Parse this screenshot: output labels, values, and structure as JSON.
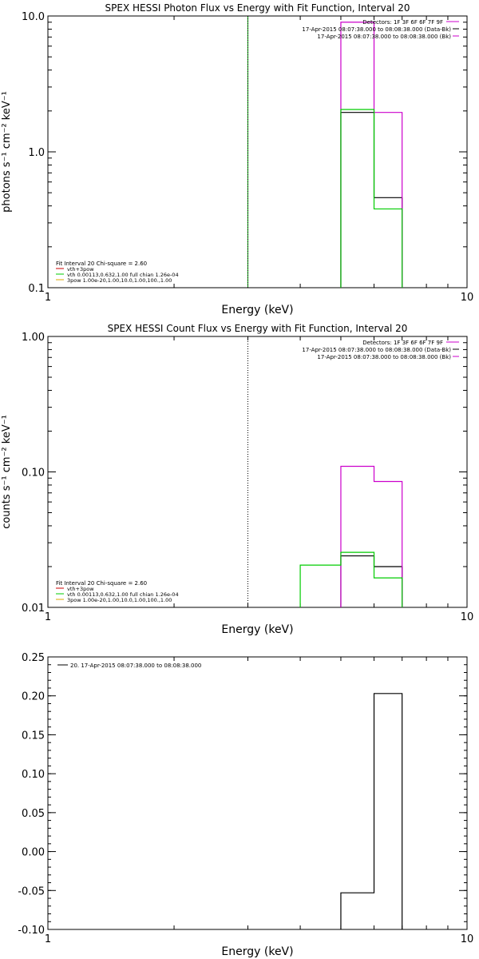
{
  "chart_data": [
    {
      "type": "line",
      "title": "SPEX HESSI Photon Flux vs Energy with Fit Function, Interval 20",
      "xlabel": "Energy (keV)",
      "ylabel": "photons s⁻¹ cm⁻² keV⁻¹",
      "xscale": "log",
      "yscale": "log",
      "xlim": [
        1,
        10
      ],
      "ylim": [
        0.1,
        10
      ],
      "xticks": [
        {
          "v": 1,
          "label": "1"
        },
        {
          "v": 10,
          "label": "10"
        }
      ],
      "yticks": [
        {
          "v": 0.1,
          "label": "0.1"
        },
        {
          "v": 1,
          "label": "1.0"
        },
        {
          "v": 10,
          "label": "10.0"
        }
      ],
      "vlines": [
        {
          "x": 3.0,
          "color": "#00a000",
          "style": "solid"
        },
        {
          "x": 3.0,
          "color": "#000000",
          "style": "dotted"
        }
      ],
      "series": [
        {
          "name": "17-Apr-2015 08:07:38.000 to 08:08:38.000 (Data-Bk)",
          "color": "#000000",
          "edges": [
            5.0,
            6.0,
            7.0
          ],
          "values": [
            1.95,
            0.46
          ]
        },
        {
          "name": "17-Apr-2015 08:07:38.000 to 08:08:38.000 (Bk)",
          "color": "#cc00cc",
          "edges": [
            5.0,
            6.0,
            7.0
          ],
          "values": [
            9.0,
            1.95
          ]
        },
        {
          "name": "vth 0.00113,0.632,1.00  full chian 1.26e-04",
          "color": "#00cc00",
          "edges": [
            5.0,
            6.0,
            7.0
          ],
          "values": [
            2.05,
            0.38
          ]
        }
      ],
      "legend_right": {
        "header": "Detectors: 1F 3F 6F 6F 7F 9F",
        "items": [
          {
            "text": "17-Apr-2015 08:07:38.000 to 08:08:38.000 (Data-Bk)",
            "color": "#000000"
          },
          {
            "text": "17-Apr-2015 08:07:38.000 to 08:08:38.000 (Bk)",
            "color": "#cc00cc"
          }
        ]
      },
      "legend_left": {
        "header": "Fit Interval 20   Chi-square = 2.60",
        "items": [
          {
            "text": "vth+3pow",
            "color": "#cc0000"
          },
          {
            "text": "vth 0.00113,0.632,1.00  full chian 1.26e-04",
            "color": "#00cc00"
          },
          {
            "text": "3pow 1.00e-20,1.00,10.0,1.00,100.,1.00",
            "color": "#ddaa00"
          }
        ]
      }
    },
    {
      "type": "line",
      "title": "SPEX HESSI Count Flux vs Energy with Fit Function, Interval 20",
      "xlabel": "Energy (keV)",
      "ylabel": "counts s⁻¹ cm⁻² keV⁻¹",
      "xscale": "log",
      "yscale": "log",
      "xlim": [
        1,
        10
      ],
      "ylim": [
        0.01,
        1.0
      ],
      "xticks": [
        {
          "v": 1,
          "label": "1"
        },
        {
          "v": 10,
          "label": "10"
        }
      ],
      "yticks": [
        {
          "v": 0.01,
          "label": "0.01"
        },
        {
          "v": 0.1,
          "label": "0.10"
        },
        {
          "v": 1,
          "label": "1.00"
        }
      ],
      "vlines": [
        {
          "x": 3.0,
          "color": "#000000",
          "style": "dotted"
        }
      ],
      "series": [
        {
          "name": "17-Apr-2015 08:07:38.000 to 08:08:38.000 (Data-Bk)",
          "color": "#000000",
          "edges": [
            5.0,
            6.0,
            7.0
          ],
          "values": [
            0.024,
            0.02
          ]
        },
        {
          "name": "17-Apr-2015 08:07:38.000 to 08:08:38.000 (Bk)",
          "color": "#cc00cc",
          "edges": [
            5.0,
            6.0,
            7.0
          ],
          "values": [
            0.11,
            0.085
          ]
        },
        {
          "name": "vth 0.00113,0.632,1.00  full chian 1.26e-04",
          "color": "#00cc00",
          "edges": [
            4.0,
            5.0,
            6.0,
            7.0
          ],
          "values": [
            0.0205,
            0.0255,
            0.0165
          ]
        }
      ],
      "legend_right": {
        "header": "Detectors: 1F 3F 6F 6F 7F 9F",
        "items": [
          {
            "text": "17-Apr-2015 08:07:38.000 to 08:08:38.000 (Data-Bk)",
            "color": "#000000"
          },
          {
            "text": "17-Apr-2015 08:07:38.000 to 08:08:38.000 (Bk)",
            "color": "#cc00cc"
          }
        ]
      },
      "legend_left": {
        "header": "Fit Interval 20   Chi-square = 2.60",
        "items": [
          {
            "text": "vth+3pow",
            "color": "#cc0000"
          },
          {
            "text": "vth 0.00113,0.632,1.00  full chian 1.26e-04",
            "color": "#00cc00"
          },
          {
            "text": "3pow 1.00e-20,1.00,10.0,1.00,100.,1.00",
            "color": "#ddaa00"
          }
        ]
      }
    },
    {
      "type": "line",
      "title": "",
      "xlabel": "Energy (keV)",
      "ylabel": "",
      "xscale": "log",
      "yscale": "linear",
      "xlim": [
        1,
        10
      ],
      "ylim": [
        -0.1,
        0.25
      ],
      "xticks": [
        {
          "v": 1,
          "label": "1"
        },
        {
          "v": 10,
          "label": "10"
        }
      ],
      "yticks": [
        {
          "v": -0.1,
          "label": "-0.10"
        },
        {
          "v": -0.05,
          "label": "-0.05"
        },
        {
          "v": 0.0,
          "label": "0.00"
        },
        {
          "v": 0.05,
          "label": "0.05"
        },
        {
          "v": 0.1,
          "label": "0.10"
        },
        {
          "v": 0.15,
          "label": "0.15"
        },
        {
          "v": 0.2,
          "label": "0.20"
        },
        {
          "v": 0.25,
          "label": "0.25"
        }
      ],
      "vlines": [],
      "series": [
        {
          "name": "20. 17-Apr-2015 08:07:38.000 to 08:08:38.000",
          "color": "#000000",
          "edges": [
            5.0,
            6.0,
            7.0
          ],
          "values": [
            -0.053,
            0.203
          ],
          "drop_to_bottom": true
        }
      ],
      "legend_top_left": {
        "items": [
          {
            "text": "20. 17-Apr-2015 08:07:38.000 to 08:08:38.000",
            "color": "#000000"
          }
        ]
      }
    }
  ]
}
